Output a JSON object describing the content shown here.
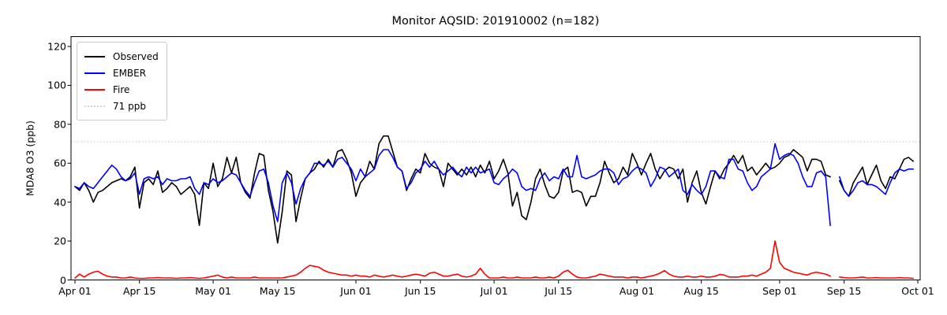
{
  "title": "Monitor AQSID: 201910002 (n=182)",
  "chart_data": {
    "type": "line",
    "title": "Monitor AQSID: 201910002 (n=182)",
    "xlabel": "",
    "ylabel": "MDA8 O3 (ppb)",
    "ylim": [
      0,
      125
    ],
    "grid": false,
    "n_points": 182,
    "x_start": "Apr 01",
    "x_end": "Oct 01",
    "threshold": {
      "value": 71,
      "label": "71 ppb",
      "color": "#d3d3d3",
      "style": "dotted"
    },
    "x_axis": {
      "ticks": [
        {
          "day": 0,
          "label": "Apr 01"
        },
        {
          "day": 14,
          "label": "Apr 15"
        },
        {
          "day": 30,
          "label": "May 01"
        },
        {
          "day": 44,
          "label": "May 15"
        },
        {
          "day": 61,
          "label": "Jun 01"
        },
        {
          "day": 75,
          "label": "Jun 15"
        },
        {
          "day": 91,
          "label": "Jul 01"
        },
        {
          "day": 105,
          "label": "Jul 15"
        },
        {
          "day": 122,
          "label": "Aug 01"
        },
        {
          "day": 136,
          "label": "Aug 15"
        },
        {
          "day": 153,
          "label": "Sep 01"
        },
        {
          "day": 167,
          "label": "Sep 15"
        },
        {
          "day": 183,
          "label": "Oct 01"
        }
      ]
    },
    "y_axis": {
      "ticks": [
        0,
        20,
        40,
        60,
        80,
        100,
        120
      ]
    },
    "legend": {
      "position": "upper-left",
      "entries": [
        {
          "label": "Observed",
          "color": "#000000",
          "dash": "solid"
        },
        {
          "label": "EMBER",
          "color": "#0000ff",
          "dash": "solid"
        },
        {
          "label": "Fire",
          "color": "#ff0000",
          "dash": "solid"
        },
        {
          "label": "71 ppb",
          "color": "#d3d3d3",
          "dash": "dotted"
        }
      ]
    },
    "series": [
      {
        "name": "Observed",
        "color": "#000000",
        "values": [
          48,
          46,
          50,
          46,
          40,
          45,
          46,
          48,
          50,
          51,
          52,
          51,
          53,
          58,
          37,
          50,
          52,
          49,
          56,
          45,
          47,
          50,
          48,
          44,
          46,
          48,
          44,
          28,
          50,
          47,
          60,
          48,
          52,
          63,
          55,
          63,
          50,
          45,
          42,
          55,
          65,
          64,
          46,
          35,
          19,
          35,
          56,
          54,
          30,
          42,
          52,
          55,
          57,
          61,
          58,
          62,
          58,
          66,
          67,
          62,
          55,
          43,
          50,
          53,
          61,
          57,
          70,
          74,
          74,
          66,
          58,
          56,
          46,
          52,
          57,
          55,
          65,
          60,
          58,
          57,
          48,
          60,
          57,
          54,
          57,
          54,
          58,
          53,
          59,
          55,
          61,
          52,
          56,
          62,
          55,
          38,
          45,
          33,
          31,
          40,
          52,
          57,
          49,
          43,
          42,
          45,
          56,
          58,
          45,
          46,
          45,
          38,
          43,
          43,
          50,
          61,
          55,
          50,
          52,
          58,
          54,
          65,
          60,
          54,
          60,
          65,
          57,
          52,
          56,
          58,
          57,
          52,
          57,
          40,
          50,
          56,
          45,
          39,
          48,
          56,
          52,
          57,
          60,
          64,
          60,
          64,
          56,
          58,
          54,
          57,
          60,
          57,
          58,
          60,
          63,
          64,
          67,
          65,
          63,
          56,
          62,
          62,
          61,
          54,
          53,
          null,
          51,
          46,
          43,
          50,
          54,
          58,
          49,
          54,
          59,
          51,
          47,
          53,
          52,
          57,
          62,
          63,
          61
        ]
      },
      {
        "name": "EMBER",
        "color": "#0000ff",
        "values": [
          48,
          47,
          50,
          48,
          47,
          50,
          53,
          56,
          59,
          57,
          53,
          51,
          52,
          55,
          44,
          52,
          53,
          52,
          53,
          49,
          52,
          51,
          51,
          52,
          52,
          53,
          47,
          44,
          50,
          49,
          52,
          50,
          51,
          53,
          55,
          54,
          50,
          46,
          43,
          50,
          56,
          57,
          50,
          38,
          30,
          50,
          55,
          50,
          39,
          47,
          52,
          55,
          60,
          60,
          59,
          61,
          58,
          62,
          63,
          60,
          57,
          51,
          57,
          53,
          55,
          57,
          64,
          67,
          67,
          63,
          58,
          56,
          47,
          50,
          55,
          57,
          61,
          58,
          61,
          57,
          54,
          56,
          58,
          55,
          53,
          58,
          55,
          58,
          55,
          56,
          57,
          50,
          49,
          52,
          54,
          57,
          55,
          48,
          46,
          47,
          46,
          52,
          55,
          51,
          53,
          52,
          57,
          53,
          53,
          64,
          53,
          52,
          53,
          54,
          56,
          57,
          57,
          55,
          49,
          52,
          53,
          56,
          58,
          57,
          55,
          48,
          52,
          58,
          57,
          53,
          55,
          57,
          46,
          44,
          49,
          46,
          44,
          48,
          56,
          56,
          53,
          52,
          62,
          62,
          57,
          56,
          50,
          46,
          48,
          53,
          55,
          57,
          70,
          62,
          64,
          65,
          64,
          60,
          53,
          48,
          48,
          55,
          56,
          53,
          28,
          null,
          53,
          46,
          43,
          46,
          50,
          51,
          49,
          49,
          48,
          46,
          44,
          50,
          55,
          57,
          56,
          57,
          57
        ]
      },
      {
        "name": "Fire",
        "color": "#ff0000",
        "values": [
          1,
          3,
          1.5,
          3,
          4,
          4.5,
          3,
          2,
          1.5,
          1.5,
          1,
          1,
          1.5,
          1,
          0.8,
          0.8,
          1,
          1,
          1.2,
          1,
          1,
          1,
          0.8,
          1,
          1,
          1.2,
          1,
          0.8,
          1,
          1.5,
          2,
          2.5,
          1.5,
          1,
          1.5,
          1,
          1,
          1,
          1,
          1.5,
          1,
          1,
          1,
          1,
          1,
          1,
          1.5,
          2,
          2.5,
          4,
          6,
          7.5,
          7,
          6.5,
          5,
          4,
          3.5,
          3,
          2.5,
          2.5,
          2,
          2.5,
          2,
          2,
          1.5,
          2.5,
          2,
          1.5,
          2,
          2.5,
          2,
          1.5,
          2,
          2.5,
          3,
          2.5,
          2,
          3.5,
          4,
          3,
          2,
          2,
          2.5,
          3,
          2,
          1.5,
          2,
          3,
          6,
          3,
          1,
          1,
          1,
          1.5,
          1,
          1,
          1.5,
          1,
          1,
          1,
          1.5,
          1,
          1,
          1.5,
          1,
          2,
          4,
          5,
          3,
          1.5,
          1,
          1,
          1.5,
          2,
          3,
          2.5,
          2,
          1.5,
          1.5,
          1.5,
          1,
          1.5,
          1.5,
          1,
          1.5,
          2,
          2.5,
          3.5,
          4.8,
          3,
          2,
          1.5,
          1.5,
          2,
          1.5,
          1.5,
          2,
          1.5,
          1.5,
          2,
          2.8,
          2.5,
          1.5,
          1.5,
          1.5,
          2,
          2,
          2.5,
          2,
          3,
          4,
          6,
          20,
          9,
          6,
          5,
          4,
          3.5,
          3,
          2.5,
          3.5,
          4,
          3.5,
          3,
          2,
          null,
          1.5,
          1.2,
          1,
          1,
          1.2,
          1.5,
          1,
          1,
          1.2,
          1,
          1,
          1,
          1,
          1.2,
          1,
          1,
          0.8
        ]
      }
    ]
  }
}
